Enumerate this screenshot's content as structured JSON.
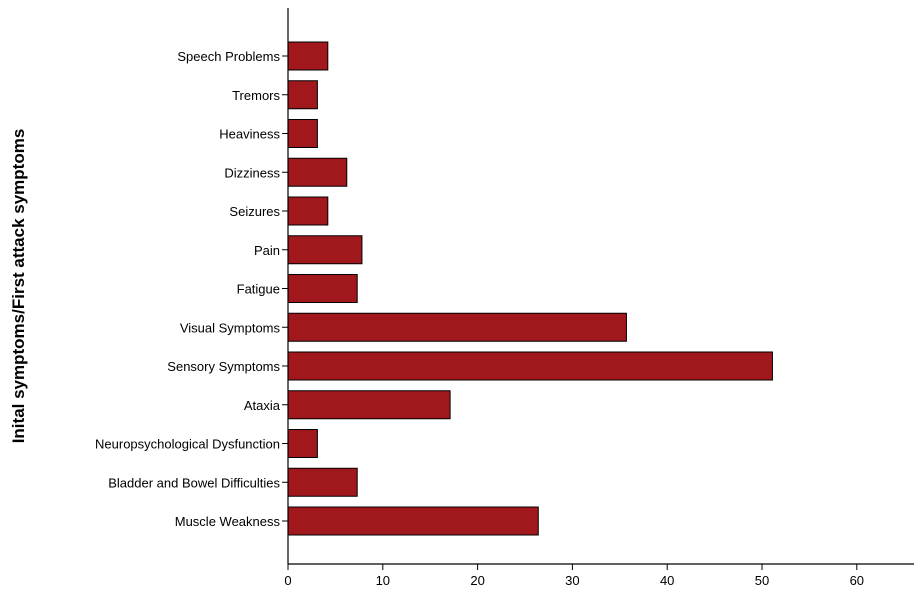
{
  "chart_data": {
    "type": "bar",
    "orientation": "horizontal",
    "ylabel": "Inital symptoms/First attack symptoms",
    "xlabel": "",
    "xlim": [
      0,
      66
    ],
    "xticks": [
      0,
      10,
      20,
      30,
      40,
      50,
      60
    ],
    "categories": [
      "Speech Problems",
      "Tremors",
      "Heaviness",
      "Dizziness",
      "Seizures",
      "Pain",
      "Fatigue",
      "Visual Symptoms",
      "Sensory Symptoms",
      "Ataxia",
      "Neuropsychological Dysfunction",
      "Bladder and Bowel Difficulties",
      "Muscle Weakness"
    ],
    "values": [
      4.2,
      3.1,
      3.1,
      6.2,
      4.2,
      7.8,
      7.3,
      35.7,
      51.1,
      17.1,
      3.1,
      7.3,
      26.4
    ],
    "bar_color": "#a0171c",
    "grid": false,
    "legend": "none"
  }
}
